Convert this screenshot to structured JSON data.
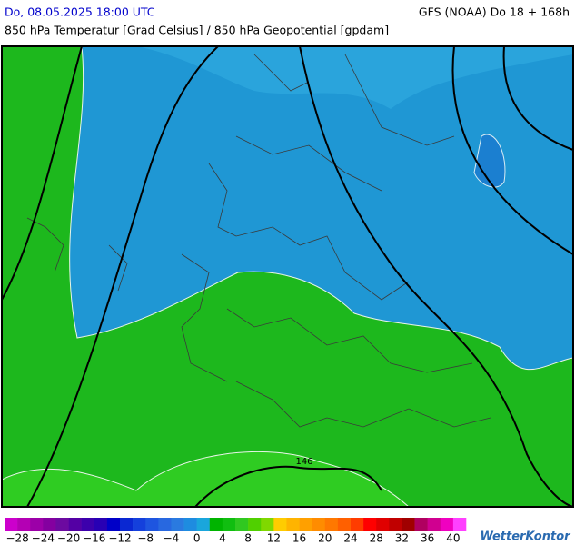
{
  "header": {
    "date": "Do, 08.05.2025 18:00 UTC",
    "model": "GFS (NOAA) Do 18 + 168h",
    "subtitle": "850 hPa Temperatur [Grad Celsius] / 850 hPa Geopotential [gpdam]"
  },
  "map": {
    "contour_label": "146"
  },
  "colorbar": {
    "min": -30,
    "step": 2,
    "colors": [
      "#cc00cc",
      "#b400b4",
      "#9c00a8",
      "#8400a0",
      "#6c0aa0",
      "#5400a4",
      "#3c00ac",
      "#2800b4",
      "#0000c8",
      "#0a28d2",
      "#1440dc",
      "#1e55e0",
      "#2868e0",
      "#2a7ae0",
      "#1e8ce0",
      "#1aa6dc",
      "#00b400",
      "#10be10",
      "#30c820",
      "#50d000",
      "#80d800",
      "#ffcc00",
      "#ffb400",
      "#ffa000",
      "#ff8c00",
      "#ff7800",
      "#ff6000",
      "#ff3c00",
      "#ff0000",
      "#e00000",
      "#c00000",
      "#a00000",
      "#b00060",
      "#d00090",
      "#f000c0",
      "#ff40ff"
    ],
    "ticks": [
      {
        "value": -28,
        "label": "−28"
      },
      {
        "value": -24,
        "label": "−24"
      },
      {
        "value": -20,
        "label": "−20"
      },
      {
        "value": -16,
        "label": "−16"
      },
      {
        "value": -12,
        "label": "−12"
      },
      {
        "value": -8,
        "label": "−8"
      },
      {
        "value": -4,
        "label": "−4"
      },
      0,
      4,
      8,
      12,
      16,
      20,
      24,
      28,
      32,
      36,
      40
    ]
  },
  "logo": "WetterKontor"
}
